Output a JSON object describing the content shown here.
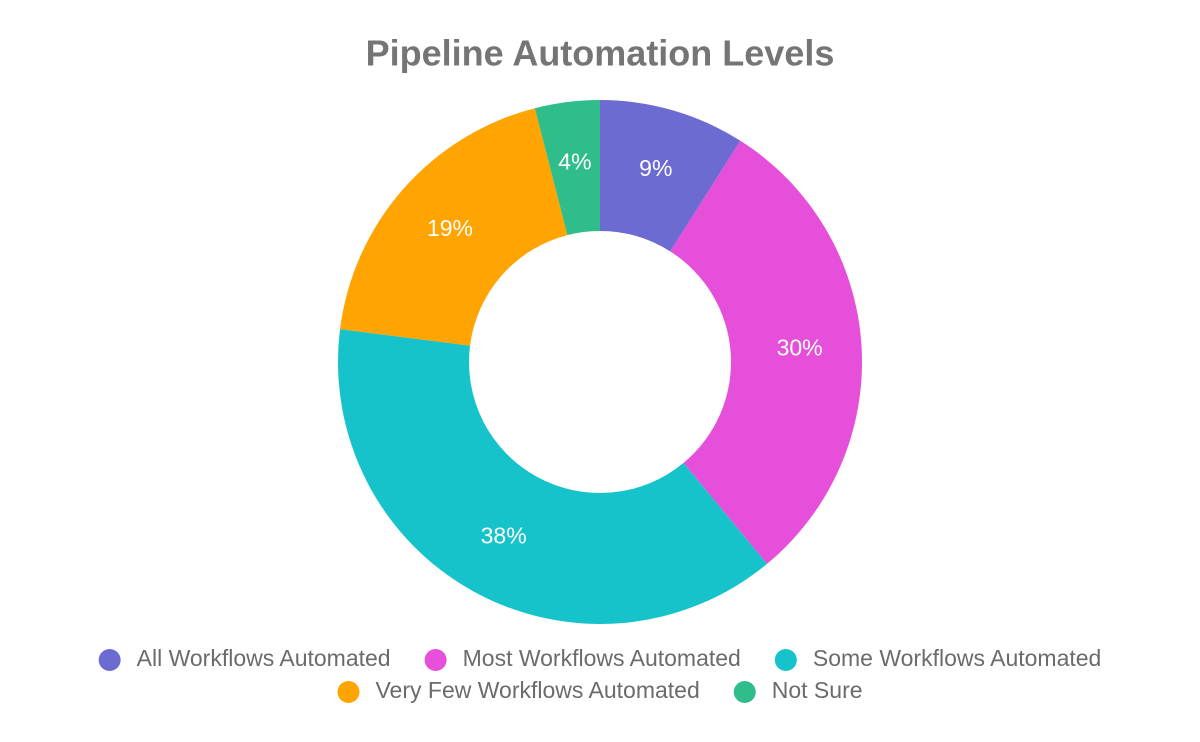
{
  "chart_data": {
    "type": "donut",
    "title": "Pipeline Automation Levels",
    "categories": [
      "All Workflows Automated",
      "Most Workflows Automated",
      "Some Workflows Automated",
      "Very Few Workflows Automated",
      "Not Sure"
    ],
    "values": [
      9,
      30,
      38,
      19,
      4
    ],
    "value_labels": [
      "9%",
      "30%",
      "38%",
      "19%",
      "4%"
    ],
    "colors": [
      "#6c6bd1",
      "#e54fd9",
      "#17c3cb",
      "#ffa400",
      "#2fbd8c"
    ],
    "legend": "bottom"
  }
}
